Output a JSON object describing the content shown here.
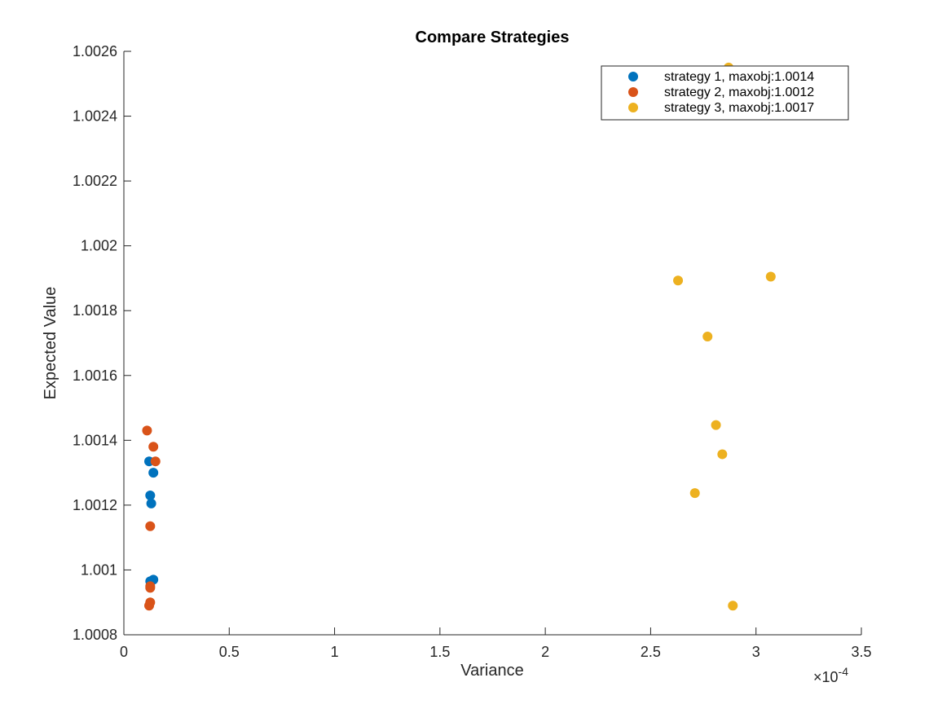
{
  "chart_data": {
    "type": "scatter",
    "title": "Compare Strategies",
    "xlabel": "Variance",
    "ylabel": "Expected Value",
    "x_multiplier_base": "×10",
    "x_multiplier_exp": "-4",
    "xlim": [
      0,
      3.5
    ],
    "ylim": [
      1.0008,
      1.0026
    ],
    "x_ticks": [
      0,
      0.5,
      1,
      1.5,
      2,
      2.5,
      3,
      3.5
    ],
    "x_tick_labels": [
      "0",
      "0.5",
      "1",
      "1.5",
      "2",
      "2.5",
      "3",
      "3.5"
    ],
    "y_ticks": [
      1.0008,
      1.001,
      1.0012,
      1.0014,
      1.0016,
      1.0018,
      1.002,
      1.0022,
      1.0024,
      1.0026
    ],
    "y_tick_labels": [
      "1.0008",
      "1.001",
      "1.0012",
      "1.0014",
      "1.0016",
      "1.0018",
      "1.002",
      "1.0022",
      "1.0024",
      "1.0026"
    ],
    "grid": false,
    "legend_position": "top-right",
    "series": [
      {
        "name": "strategy 1, maxobj:1.0014",
        "color": "#0072BD",
        "points": [
          [
            0.12,
            1.001335
          ],
          [
            0.14,
            1.0013
          ],
          [
            0.125,
            1.00123
          ],
          [
            0.13,
            1.001205
          ],
          [
            0.125,
            1.000965
          ],
          [
            0.14,
            1.00097
          ]
        ]
      },
      {
        "name": "strategy 2, maxobj:1.0012",
        "color": "#D95319",
        "points": [
          [
            0.11,
            1.00143
          ],
          [
            0.14,
            1.00138
          ],
          [
            0.15,
            1.001335
          ],
          [
            0.125,
            1.001135
          ],
          [
            0.125,
            1.00095
          ],
          [
            0.125,
            1.000945
          ],
          [
            0.125,
            1.0009
          ],
          [
            0.12,
            1.00089
          ]
        ]
      },
      {
        "name": "strategy 3, maxobj:1.0017",
        "color": "#EDB120",
        "points": [
          [
            2.87,
            1.00255
          ],
          [
            3.07,
            1.001905
          ],
          [
            2.63,
            1.001893
          ],
          [
            2.77,
            1.00172
          ],
          [
            2.81,
            1.001447
          ],
          [
            2.84,
            1.001357
          ],
          [
            2.71,
            1.001237
          ],
          [
            2.89,
            1.00089
          ]
        ]
      }
    ]
  }
}
